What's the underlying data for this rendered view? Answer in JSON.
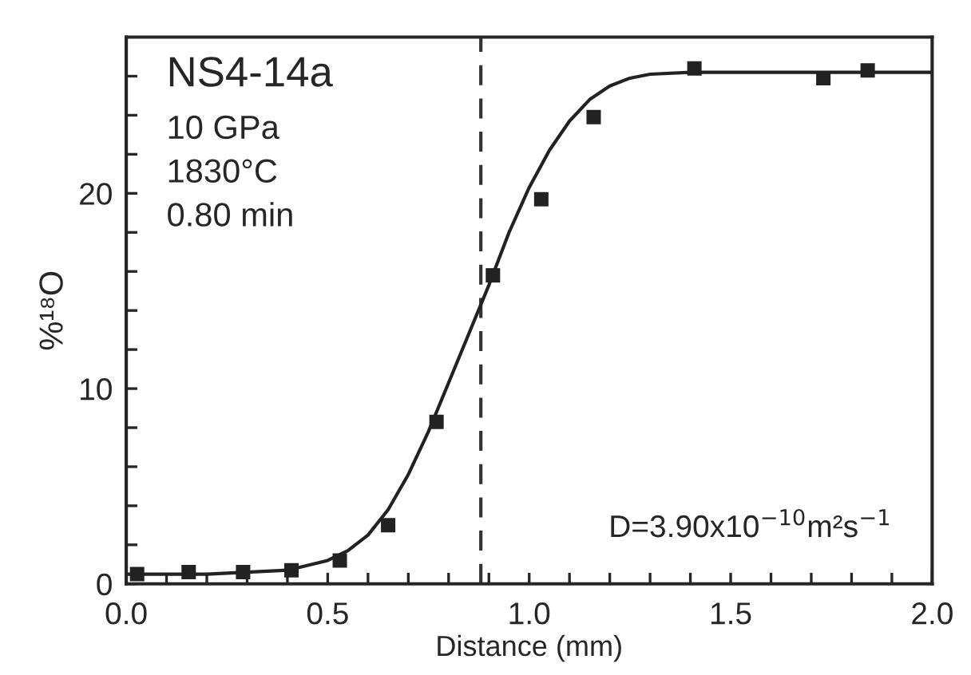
{
  "chart_data": {
    "type": "scatter",
    "xlabel": "Distance (mm)",
    "ylabel": "%¹⁸O",
    "annotations": [
      "NS4-14a",
      "10 GPa",
      "1830°C",
      "0.80 min",
      "D=3.90x10$^{−10}$m²s$^{−1}$"
    ],
    "series": [
      {
        "color": "#222222",
        "marker": "square",
        "x": [
          0.027,
          0.155,
          0.29,
          0.41,
          0.53,
          0.65,
          0.77,
          0.91,
          1.03,
          1.16,
          1.41,
          1.73,
          1.84
        ],
        "values": [
          0.5,
          0.6,
          0.6,
          0.7,
          1.2,
          3.0,
          8.3,
          15.8,
          19.7,
          23.9,
          26.4,
          25.9,
          26.3
        ]
      },
      {
        "type": "line",
        "color": "#222222",
        "marker": "none",
        "line_style": "solid",
        "x": [
          0,
          0.1,
          0.2,
          0.3,
          0.4,
          0.5,
          0.55,
          0.6,
          0.65,
          0.7,
          0.75,
          0.8,
          0.85,
          0.9,
          0.95,
          1.0,
          1.05,
          1.1,
          1.15,
          1.2,
          1.25,
          1.3,
          1.4,
          1.6,
          1.8,
          2.0
        ],
        "values": [
          0.5,
          0.5,
          0.5,
          0.6,
          0.7,
          1.2,
          1.7,
          2.5,
          3.8,
          5.6,
          7.8,
          10.3,
          12.8,
          15.3,
          18.0,
          20.3,
          22.2,
          23.7,
          24.8,
          25.5,
          25.9,
          26.1,
          26.2,
          26.2,
          26.2,
          26.2
        ]
      }
    ],
    "ref_lines": [
      {
        "axis": "x",
        "value": 0.88,
        "color": "#333333",
        "line_style": "dashed"
      }
    ],
    "xlim": [
      0,
      2
    ],
    "ylim": [
      0,
      28
    ],
    "xticks": [
      {
        "value": 0,
        "label": "0.0"
      },
      {
        "value": 0.1,
        "label": null
      },
      {
        "value": 0.2,
        "label": null
      },
      {
        "value": 0.3,
        "label": null
      },
      {
        "value": 0.4,
        "label": null
      },
      {
        "value": 0.5,
        "label": "0.5"
      },
      {
        "value": 0.6,
        "label": null
      },
      {
        "value": 0.7,
        "label": null
      },
      {
        "value": 0.8,
        "label": null
      },
      {
        "value": 0.9,
        "label": null
      },
      {
        "value": 1,
        "label": "1.0"
      },
      {
        "value": 1.1,
        "label": null
      },
      {
        "value": 1.2,
        "label": null
      },
      {
        "value": 1.3,
        "label": null
      },
      {
        "value": 1.4,
        "label": null
      },
      {
        "value": 1.5,
        "label": "1.5"
      },
      {
        "value": 1.6,
        "label": null
      },
      {
        "value": 1.7,
        "label": null
      },
      {
        "value": 1.8,
        "label": null
      },
      {
        "value": 1.9,
        "label": null
      },
      {
        "value": 2,
        "label": "2.0"
      }
    ],
    "yticks": [
      0,
      {
        "value": 2,
        "label": null
      },
      {
        "value": 4,
        "label": null
      },
      {
        "value": 6,
        "label": null
      },
      {
        "value": 8,
        "label": null
      },
      10,
      {
        "value": 12,
        "label": null
      },
      {
        "value": 14,
        "label": null
      },
      {
        "value": 16,
        "label": null
      },
      {
        "value": 18,
        "label": null
      },
      20,
      {
        "value": 22,
        "label": null
      },
      {
        "value": 24,
        "label": null
      },
      {
        "value": 26,
        "label": null
      }
    ],
    "grid": false,
    "legend": false
  }
}
